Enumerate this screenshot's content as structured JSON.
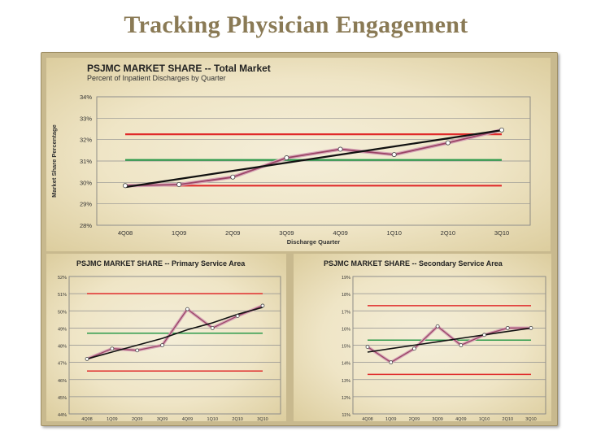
{
  "slide": {
    "title": "Tracking Physician Engagement"
  },
  "chart_data": [
    {
      "type": "line",
      "title": "PSJMC MARKET SHARE  -- Total Market",
      "subtitle": "Percent of Inpatient Discharges by Quarter",
      "xlabel": "Discharge Quarter",
      "ylabel": "Market Share Percentage",
      "categories": [
        "4Q08",
        "1Q09",
        "2Q09",
        "3Q09",
        "4Q09",
        "1Q10",
        "2Q10",
        "3Q10"
      ],
      "yticks": [
        "28%",
        "29%",
        "30%",
        "31%",
        "32%",
        "33%",
        "34%"
      ],
      "ylim": [
        28,
        34
      ],
      "grid": true,
      "series": [
        {
          "role": "actual",
          "values": [
            29.85,
            29.9,
            30.25,
            31.15,
            31.55,
            31.3,
            31.85,
            32.45
          ]
        },
        {
          "role": "trend",
          "values": [
            29.78,
            30.16,
            30.54,
            30.92,
            31.3,
            31.68,
            32.06,
            32.44
          ]
        },
        {
          "role": "upper-limit",
          "values": [
            32.25,
            32.25,
            32.25,
            32.25,
            32.25,
            32.25,
            32.25,
            32.25
          ]
        },
        {
          "role": "center-line",
          "values": [
            31.05,
            31.05,
            31.05,
            31.05,
            31.05,
            31.05,
            31.05,
            31.05
          ]
        },
        {
          "role": "lower-limit",
          "values": [
            29.85,
            29.85,
            29.85,
            29.85,
            29.85,
            29.85,
            29.85,
            29.85
          ]
        }
      ]
    },
    {
      "type": "line",
      "title": "PSJMC MARKET SHARE -- Primary Service Area",
      "categories": [
        "4Q08",
        "1Q09",
        "2Q09",
        "3Q09",
        "4Q09",
        "1Q10",
        "2Q10",
        "3Q10"
      ],
      "yticks": [
        "44%",
        "45%",
        "46%",
        "47%",
        "48%",
        "49%",
        "50%",
        "51%",
        "52%"
      ],
      "ylim": [
        44,
        52
      ],
      "grid": true,
      "series": [
        {
          "role": "actual",
          "values": [
            47.2,
            47.8,
            47.7,
            48.0,
            50.1,
            49.0,
            49.7,
            50.3
          ]
        },
        {
          "role": "trend",
          "values": [
            47.2,
            47.6,
            48.0,
            48.4,
            48.9,
            49.3,
            49.8,
            50.2
          ]
        },
        {
          "role": "upper-limit",
          "values": [
            51.0,
            51.0,
            51.0,
            51.0,
            51.0,
            51.0,
            51.0,
            51.0
          ]
        },
        {
          "role": "center-line",
          "values": [
            48.7,
            48.7,
            48.7,
            48.7,
            48.7,
            48.7,
            48.7,
            48.7
          ]
        },
        {
          "role": "lower-limit",
          "values": [
            46.5,
            46.5,
            46.5,
            46.5,
            46.5,
            46.5,
            46.5,
            46.5
          ]
        }
      ]
    },
    {
      "type": "line",
      "title": "PSJMC MARKET SHARE -- Secondary Service Area",
      "categories": [
        "4Q08",
        "1Q09",
        "2Q09",
        "3Q09",
        "4Q09",
        "1Q10",
        "2Q10",
        "3Q10"
      ],
      "yticks": [
        "11%",
        "12%",
        "13%",
        "14%",
        "15%",
        "16%",
        "17%",
        "18%",
        "19%"
      ],
      "ylim": [
        11,
        19
      ],
      "grid": true,
      "series": [
        {
          "role": "actual",
          "values": [
            14.9,
            14.0,
            14.8,
            16.1,
            15.0,
            15.6,
            16.0,
            16.0
          ]
        },
        {
          "role": "trend",
          "values": [
            14.6,
            14.8,
            15.0,
            15.2,
            15.4,
            15.6,
            15.8,
            16.0
          ]
        },
        {
          "role": "upper-limit",
          "values": [
            17.3,
            17.3,
            17.3,
            17.3,
            17.3,
            17.3,
            17.3,
            17.3
          ]
        },
        {
          "role": "center-line",
          "values": [
            15.3,
            15.3,
            15.3,
            15.3,
            15.3,
            15.3,
            15.3,
            15.3
          ]
        },
        {
          "role": "lower-limit",
          "values": [
            13.3,
            13.3,
            13.3,
            13.3,
            13.3,
            13.3,
            13.3,
            13.3
          ]
        }
      ]
    }
  ],
  "colors": {
    "actual": "#9b4466",
    "actual_band": "#d6a7b7",
    "trend": "#111111",
    "limit": "#e02b2b",
    "center": "#2c9a4a",
    "grid": "#8f8f8f",
    "marker_fill": "#ffffff"
  }
}
